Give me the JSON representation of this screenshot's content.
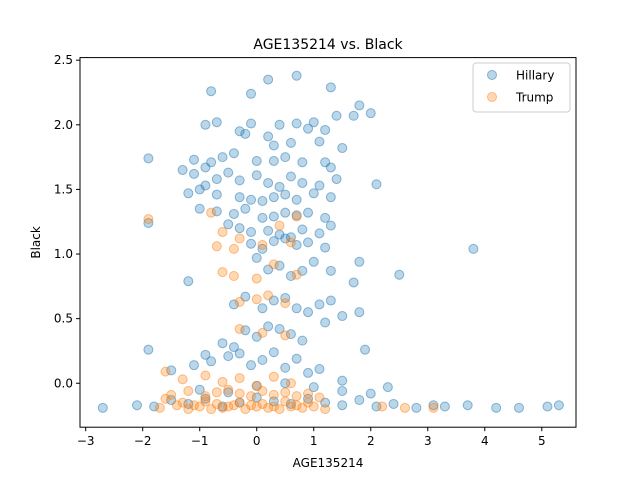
{
  "chart_data": {
    "type": "scatter",
    "title": "AGE135214 vs. Black",
    "xlabel": "AGE135214",
    "ylabel": "Black",
    "xlim": [
      -3.1,
      5.6
    ],
    "ylim": [
      -0.34,
      2.52
    ],
    "xticks": [
      -3,
      -2,
      -1,
      0,
      1,
      2,
      3,
      4,
      5
    ],
    "yticks": [
      0.0,
      0.5,
      1.0,
      1.5,
      2.0,
      2.5
    ],
    "ytick_labels": [
      "0.0",
      "0.5",
      "1.0",
      "1.5",
      "2.0",
      "2.5"
    ],
    "grid": false,
    "legend_position": "top-right",
    "series": [
      {
        "name": "Hillary",
        "color": "#1f77b4",
        "x": [
          -0.8,
          0.2,
          0.7,
          1.3,
          -0.1,
          1.8,
          2.0,
          1.0,
          -0.3,
          -0.9,
          -0.7,
          -0.2,
          -0.1,
          0.2,
          0.4,
          0.7,
          0.9,
          1.2,
          1.4,
          1.7,
          0.3,
          0.6,
          1.1,
          1.5,
          -1.9,
          -1.1,
          -0.9,
          -0.8,
          -0.6,
          -0.4,
          0.0,
          0.3,
          0.5,
          0.8,
          1.2,
          1.3,
          -1.3,
          -1.1,
          -0.7,
          -0.5,
          -0.3,
          0.0,
          0.2,
          0.4,
          0.6,
          0.8,
          1.1,
          1.4,
          2.1,
          -1.2,
          -1.0,
          -0.9,
          -0.7,
          -0.3,
          -0.1,
          0.1,
          0.3,
          0.5,
          0.7,
          1.0,
          1.3,
          -1.0,
          -0.7,
          -0.4,
          -0.2,
          0.1,
          0.3,
          0.5,
          0.7,
          0.9,
          1.2,
          -0.5,
          -0.3,
          -0.1,
          0.2,
          0.4,
          0.6,
          0.8,
          1.1,
          1.3,
          -1.9,
          -0.1,
          0.1,
          0.3,
          0.5,
          0.7,
          0.9,
          1.2,
          1.8,
          2.5,
          3.8,
          -1.2,
          0.0,
          0.2,
          0.4,
          0.6,
          0.8,
          1.0,
          1.3,
          1.7,
          -0.4,
          -0.2,
          0.1,
          0.3,
          0.5,
          0.7,
          0.9,
          1.1,
          1.3,
          1.5,
          1.8,
          -1.9,
          -0.9,
          -0.6,
          -0.4,
          -0.2,
          0.0,
          0.2,
          0.4,
          0.6,
          0.8,
          1.2,
          1.9,
          -1.5,
          -1.1,
          -0.8,
          -0.5,
          -0.3,
          -0.1,
          0.1,
          0.3,
          0.5,
          0.7,
          0.9,
          1.1,
          1.5,
          2.3,
          -2.7,
          -2.1,
          -1.8,
          -1.5,
          -1.2,
          -0.9,
          -0.6,
          -0.3,
          0.0,
          0.3,
          0.6,
          0.9,
          1.2,
          1.5,
          1.8,
          2.1,
          2.4,
          2.8,
          3.1,
          3.3,
          3.7,
          4.2,
          4.6,
          5.1,
          5.3,
          -1.0,
          -0.5,
          0.0,
          0.5,
          1.0,
          1.5,
          2.0
        ],
        "y": [
          2.26,
          2.35,
          2.38,
          2.29,
          2.24,
          2.15,
          2.09,
          2.02,
          1.95,
          2.0,
          2.02,
          1.93,
          2.01,
          1.91,
          2.0,
          2.01,
          1.97,
          1.96,
          2.07,
          2.07,
          1.84,
          1.86,
          1.87,
          1.82,
          1.74,
          1.73,
          1.67,
          1.71,
          1.75,
          1.78,
          1.72,
          1.72,
          1.75,
          1.71,
          1.71,
          1.67,
          1.65,
          1.62,
          1.58,
          1.63,
          1.57,
          1.61,
          1.55,
          1.52,
          1.6,
          1.55,
          1.53,
          1.58,
          1.54,
          1.47,
          1.5,
          1.53,
          1.46,
          1.44,
          1.42,
          1.41,
          1.44,
          1.46,
          1.42,
          1.47,
          1.44,
          1.35,
          1.33,
          1.31,
          1.35,
          1.28,
          1.29,
          1.32,
          1.3,
          1.32,
          1.28,
          1.23,
          1.2,
          1.17,
          1.18,
          1.15,
          1.13,
          1.19,
          1.16,
          1.22,
          1.24,
          1.08,
          1.04,
          1.1,
          1.12,
          1.07,
          1.09,
          1.05,
          0.94,
          0.84,
          1.04,
          0.79,
          0.97,
          0.88,
          0.91,
          0.83,
          0.87,
          0.94,
          0.87,
          0.78,
          0.61,
          0.67,
          0.58,
          0.64,
          0.66,
          0.58,
          0.55,
          0.61,
          0.64,
          0.52,
          0.55,
          0.26,
          0.22,
          0.31,
          0.28,
          0.41,
          0.36,
          0.44,
          0.42,
          0.38,
          0.33,
          0.47,
          0.26,
          0.1,
          0.14,
          0.17,
          0.21,
          0.23,
          0.14,
          0.18,
          0.24,
          0.12,
          0.19,
          0.08,
          0.11,
          0.02,
          -0.03,
          -0.19,
          -0.17,
          -0.18,
          -0.13,
          -0.16,
          -0.12,
          -0.18,
          -0.15,
          -0.11,
          -0.14,
          -0.16,
          -0.12,
          -0.15,
          -0.17,
          -0.13,
          -0.18,
          -0.16,
          -0.19,
          -0.17,
          -0.18,
          -0.17,
          -0.19,
          -0.19,
          -0.18,
          -0.17,
          -0.05,
          -0.07,
          -0.02,
          0.0,
          -0.03,
          -0.06,
          -0.08
        ]
      },
      {
        "name": "Trump",
        "color": "#ff7f0e",
        "x": [
          -1.9,
          -0.8,
          -0.6,
          -0.3,
          0.4,
          0.7,
          -0.7,
          -0.4,
          0.1,
          0.6,
          -0.6,
          -0.4,
          0.0,
          0.3,
          0.7,
          -0.3,
          0.0,
          0.2,
          0.5,
          -0.3,
          0.1,
          0.5,
          -1.6,
          -1.3,
          -0.9,
          -0.6,
          -0.3,
          0.0,
          0.3,
          0.6,
          -1.6,
          -1.3,
          -1.1,
          -0.9,
          -0.7,
          -0.5,
          -0.3,
          -0.1,
          0.1,
          0.3,
          0.5,
          0.7,
          0.9,
          -1.7,
          -1.4,
          -1.2,
          -1.0,
          -0.8,
          -0.6,
          -0.4,
          -0.2,
          0.0,
          0.2,
          0.4,
          0.6,
          0.8,
          1.0,
          1.2,
          2.6,
          3.1,
          -1.5,
          -1.2,
          -0.9,
          -0.7,
          -0.5,
          -0.3,
          -0.1,
          0.1,
          0.3,
          0.5,
          0.7,
          0.9,
          1.1,
          2.2
        ],
        "y": [
          1.27,
          1.32,
          1.17,
          1.12,
          1.22,
          1.29,
          1.06,
          1.04,
          1.07,
          1.09,
          0.86,
          0.83,
          0.81,
          0.92,
          0.84,
          0.63,
          0.65,
          0.68,
          0.62,
          0.42,
          0.39,
          0.37,
          0.09,
          0.03,
          0.06,
          0.01,
          0.04,
          -0.02,
          0.05,
          0.0,
          -0.12,
          -0.15,
          -0.17,
          -0.14,
          -0.16,
          -0.18,
          -0.15,
          -0.17,
          -0.16,
          -0.18,
          -0.14,
          -0.17,
          -0.15,
          -0.19,
          -0.17,
          -0.2,
          -0.18,
          -0.2,
          -0.19,
          -0.17,
          -0.2,
          -0.18,
          -0.19,
          -0.2,
          -0.18,
          -0.19,
          -0.18,
          -0.2,
          -0.19,
          -0.19,
          -0.09,
          -0.06,
          -0.1,
          -0.07,
          -0.05,
          -0.08,
          -0.1,
          -0.06,
          -0.09,
          -0.07,
          -0.1,
          -0.08,
          -0.11,
          -0.18
        ]
      }
    ]
  }
}
